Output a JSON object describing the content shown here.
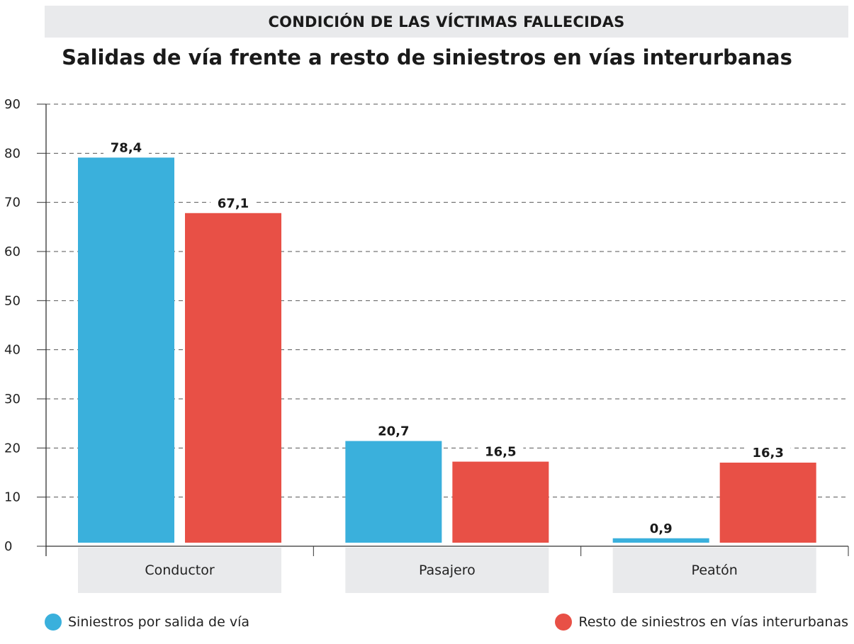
{
  "header": {
    "band_title": "CONDICIÓN DE LAS VÍCTIMAS FALLECIDAS"
  },
  "chart_data": {
    "type": "bar",
    "title": "Salidas de vía frente a resto de siniestros en vías interurbanas",
    "subtitle": "CONDICIÓN DE LAS VÍCTIMAS FALLECIDAS",
    "xlabel": "",
    "ylabel": "",
    "categories": [
      "Conductor",
      "Pasajero",
      "Peatón"
    ],
    "series": [
      {
        "name": "Siniestros por salida de vía",
        "color": "#3ab0dc",
        "values": [
          78.4,
          20.7,
          0.9
        ],
        "labels": [
          "78,4",
          "20,7",
          "0,9"
        ]
      },
      {
        "name": "Resto de siniestros en vías interurbanas",
        "color": "#e85046",
        "values": [
          67.1,
          16.5,
          16.3
        ],
        "labels": [
          "67,1",
          "16,5",
          "16,3"
        ]
      }
    ],
    "ylim": [
      0,
      90
    ],
    "yticks": [
      0,
      10,
      20,
      30,
      40,
      50,
      60,
      70,
      80,
      90
    ],
    "grid": true,
    "legend_position": "bottom"
  }
}
